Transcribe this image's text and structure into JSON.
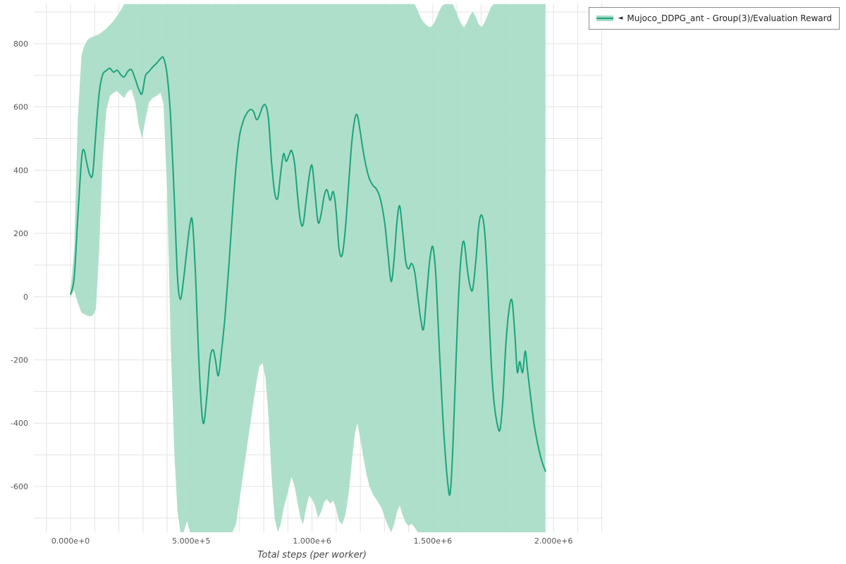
{
  "legend": {
    "marker": "◄",
    "label": "Mujoco_DDPG_ant - Group(3)/Evaluation Reward"
  },
  "colors": {
    "line": "#1ca37d",
    "band": "#a5dbc4",
    "band_opacity": 0.9,
    "grid": "#e3e3e3",
    "tick_text": "#555555",
    "axis_title_text": "#444444",
    "legend_border": "#8b8b8b",
    "background": "#ffffff"
  },
  "chart_data": {
    "type": "line",
    "title": "",
    "xlabel": "Total steps (per worker)",
    "ylabel": "",
    "legend_position": "top-right",
    "grid": "on",
    "xlim": [
      -152000,
      2204000
    ],
    "ylim": [
      -745,
      927
    ],
    "x_minor_step": 100000,
    "y_minor_step": 100,
    "x_ticks": [
      {
        "v": 0,
        "label": "0.000e+0"
      },
      {
        "v": 500000,
        "label": "5.000e+5"
      },
      {
        "v": 1000000,
        "label": "1.000e+6"
      },
      {
        "v": 1500000,
        "label": "1.500e+6"
      },
      {
        "v": 2000000,
        "label": "2.000e+6"
      }
    ],
    "y_ticks": [
      {
        "v": -600,
        "label": "-600"
      },
      {
        "v": -400,
        "label": "-400"
      },
      {
        "v": -200,
        "label": "-200"
      },
      {
        "v": 0,
        "label": "0"
      },
      {
        "v": 200,
        "label": "200"
      },
      {
        "v": 400,
        "label": "400"
      },
      {
        "v": 600,
        "label": "600"
      },
      {
        "v": 800,
        "label": "800"
      }
    ],
    "series_name": "Mujoco_DDPG_ant - Group(3)/Evaluation Reward",
    "columns": [
      "step",
      "mean",
      "lower",
      "upper"
    ],
    "points": [
      [
        0,
        8,
        0,
        18
      ],
      [
        15000,
        60,
        20,
        150
      ],
      [
        30000,
        250,
        -20,
        560
      ],
      [
        45000,
        430,
        -50,
        760
      ],
      [
        55000,
        465,
        -55,
        790
      ],
      [
        68000,
        420,
        -60,
        810
      ],
      [
        80000,
        385,
        -62,
        818
      ],
      [
        92000,
        390,
        -60,
        822
      ],
      [
        105000,
        520,
        -40,
        826
      ],
      [
        118000,
        640,
        140,
        830
      ],
      [
        132000,
        700,
        420,
        838
      ],
      [
        148000,
        715,
        590,
        848
      ],
      [
        163000,
        722,
        635,
        860
      ],
      [
        178000,
        710,
        645,
        872
      ],
      [
        193000,
        716,
        650,
        888
      ],
      [
        208000,
        702,
        638,
        905
      ],
      [
        222000,
        695,
        628,
        925
      ],
      [
        237000,
        712,
        648,
        925
      ],
      [
        252000,
        718,
        655,
        925
      ],
      [
        268000,
        688,
        615,
        925
      ],
      [
        283000,
        655,
        540,
        925
      ],
      [
        296000,
        642,
        500,
        925
      ],
      [
        310000,
        698,
        560,
        925
      ],
      [
        325000,
        712,
        615,
        925
      ],
      [
        340000,
        726,
        628,
        925
      ],
      [
        356000,
        738,
        635,
        925
      ],
      [
        372000,
        752,
        645,
        925
      ],
      [
        385000,
        755,
        610,
        925
      ],
      [
        400000,
        700,
        330,
        925
      ],
      [
        415000,
        560,
        -150,
        925
      ],
      [
        430000,
        300,
        -500,
        925
      ],
      [
        443000,
        60,
        -680,
        925
      ],
      [
        455000,
        -8,
        -745,
        925
      ],
      [
        468000,
        55,
        -745,
        925
      ],
      [
        482000,
        150,
        -710,
        925
      ],
      [
        495000,
        230,
        -745,
        925
      ],
      [
        505000,
        235,
        -745,
        925
      ],
      [
        518000,
        60,
        -745,
        925
      ],
      [
        530000,
        -180,
        -745,
        925
      ],
      [
        542000,
        -350,
        -745,
        925
      ],
      [
        552000,
        -400,
        -745,
        925
      ],
      [
        565000,
        -310,
        -745,
        925
      ],
      [
        578000,
        -195,
        -745,
        925
      ],
      [
        590000,
        -168,
        -745,
        925
      ],
      [
        600000,
        -200,
        -745,
        925
      ],
      [
        612000,
        -250,
        -745,
        925
      ],
      [
        625000,
        -175,
        -745,
        925
      ],
      [
        640000,
        -60,
        -745,
        925
      ],
      [
        655000,
        90,
        -745,
        925
      ],
      [
        670000,
        260,
        -745,
        925
      ],
      [
        685000,
        410,
        -720,
        925
      ],
      [
        700000,
        510,
        -640,
        925
      ],
      [
        715000,
        555,
        -560,
        925
      ],
      [
        730000,
        580,
        -480,
        925
      ],
      [
        745000,
        592,
        -400,
        925
      ],
      [
        758000,
        585,
        -330,
        925
      ],
      [
        770000,
        560,
        -270,
        925
      ],
      [
        782000,
        572,
        -220,
        925
      ],
      [
        795000,
        600,
        -210,
        925
      ],
      [
        808000,
        605,
        -260,
        925
      ],
      [
        820000,
        560,
        -380,
        925
      ],
      [
        832000,
        430,
        -560,
        925
      ],
      [
        845000,
        330,
        -700,
        925
      ],
      [
        858000,
        312,
        -745,
        925
      ],
      [
        870000,
        390,
        -720,
        925
      ],
      [
        882000,
        452,
        -670,
        925
      ],
      [
        893000,
        428,
        -640,
        925
      ],
      [
        905000,
        448,
        -600,
        925
      ],
      [
        915000,
        462,
        -570,
        925
      ],
      [
        928000,
        420,
        -600,
        925
      ],
      [
        940000,
        320,
        -650,
        925
      ],
      [
        952000,
        240,
        -700,
        925
      ],
      [
        963000,
        228,
        -720,
        925
      ],
      [
        975000,
        300,
        -670,
        925
      ],
      [
        988000,
        380,
        -630,
        925
      ],
      [
        1000000,
        415,
        -640,
        925
      ],
      [
        1012000,
        330,
        -660,
        925
      ],
      [
        1025000,
        235,
        -700,
        925
      ],
      [
        1038000,
        262,
        -680,
        925
      ],
      [
        1050000,
        318,
        -650,
        925
      ],
      [
        1062000,
        338,
        -640,
        925
      ],
      [
        1075000,
        305,
        -655,
        925
      ],
      [
        1088000,
        332,
        -645,
        925
      ],
      [
        1100000,
        270,
        -670,
        925
      ],
      [
        1112000,
        150,
        -710,
        925
      ],
      [
        1125000,
        132,
        -720,
        925
      ],
      [
        1138000,
        215,
        -690,
        925
      ],
      [
        1152000,
        360,
        -620,
        925
      ],
      [
        1165000,
        490,
        -520,
        925
      ],
      [
        1178000,
        565,
        -430,
        925
      ],
      [
        1188000,
        572,
        -400,
        925
      ],
      [
        1200000,
        520,
        -450,
        925
      ],
      [
        1213000,
        455,
        -510,
        925
      ],
      [
        1225000,
        408,
        -560,
        925
      ],
      [
        1238000,
        372,
        -600,
        925
      ],
      [
        1252000,
        352,
        -625,
        925
      ],
      [
        1265000,
        342,
        -640,
        925
      ],
      [
        1278000,
        322,
        -655,
        925
      ],
      [
        1290000,
        285,
        -672,
        925
      ],
      [
        1302000,
        228,
        -700,
        925
      ],
      [
        1315000,
        130,
        -725,
        925
      ],
      [
        1328000,
        48,
        -745,
        925
      ],
      [
        1340000,
        120,
        -720,
        925
      ],
      [
        1352000,
        240,
        -680,
        925
      ],
      [
        1363000,
        287,
        -660,
        925
      ],
      [
        1375000,
        210,
        -690,
        925
      ],
      [
        1388000,
        112,
        -715,
        925
      ],
      [
        1400000,
        88,
        -725,
        925
      ],
      [
        1412000,
        105,
        -718,
        925
      ],
      [
        1425000,
        78,
        -730,
        925
      ],
      [
        1438000,
        0,
        -745,
        905
      ],
      [
        1450000,
        -70,
        -745,
        882
      ],
      [
        1462000,
        -102,
        -745,
        868
      ],
      [
        1475000,
        10,
        -745,
        858
      ],
      [
        1488000,
        118,
        -745,
        852
      ],
      [
        1500000,
        158,
        -745,
        858
      ],
      [
        1512000,
        75,
        -745,
        875
      ],
      [
        1525000,
        -130,
        -745,
        900
      ],
      [
        1538000,
        -330,
        -745,
        920
      ],
      [
        1550000,
        -480,
        -745,
        925
      ],
      [
        1562000,
        -590,
        -745,
        925
      ],
      [
        1572000,
        -622,
        -745,
        925
      ],
      [
        1583000,
        -480,
        -745,
        925
      ],
      [
        1595000,
        -230,
        -745,
        905
      ],
      [
        1608000,
        20,
        -745,
        878
      ],
      [
        1620000,
        148,
        -745,
        860
      ],
      [
        1630000,
        172,
        -745,
        852
      ],
      [
        1642000,
        95,
        -745,
        868
      ],
      [
        1653000,
        38,
        -745,
        888
      ],
      [
        1665000,
        22,
        -745,
        902
      ],
      [
        1678000,
        110,
        -745,
        885
      ],
      [
        1690000,
        222,
        -745,
        862
      ],
      [
        1702000,
        258,
        -745,
        852
      ],
      [
        1715000,
        205,
        -745,
        868
      ],
      [
        1728000,
        30,
        -745,
        892
      ],
      [
        1740000,
        -180,
        -745,
        915
      ],
      [
        1752000,
        -320,
        -745,
        925
      ],
      [
        1765000,
        -395,
        -745,
        925
      ],
      [
        1778000,
        -422,
        -745,
        925
      ],
      [
        1790000,
        -330,
        -745,
        925
      ],
      [
        1802000,
        -160,
        -745,
        925
      ],
      [
        1815000,
        -45,
        -745,
        925
      ],
      [
        1828000,
        -12,
        -745,
        925
      ],
      [
        1840000,
        -120,
        -745,
        925
      ],
      [
        1850000,
        -238,
        -745,
        925
      ],
      [
        1860000,
        -205,
        -745,
        925
      ],
      [
        1872000,
        -240,
        -745,
        925
      ],
      [
        1883000,
        -172,
        -745,
        925
      ],
      [
        1893000,
        -238,
        -745,
        925
      ],
      [
        1905000,
        -315,
        -745,
        925
      ],
      [
        1918000,
        -395,
        -745,
        925
      ],
      [
        1930000,
        -448,
        -745,
        925
      ],
      [
        1942000,
        -492,
        -745,
        925
      ],
      [
        1955000,
        -528,
        -745,
        925
      ],
      [
        1967000,
        -552,
        -745,
        925
      ]
    ]
  }
}
